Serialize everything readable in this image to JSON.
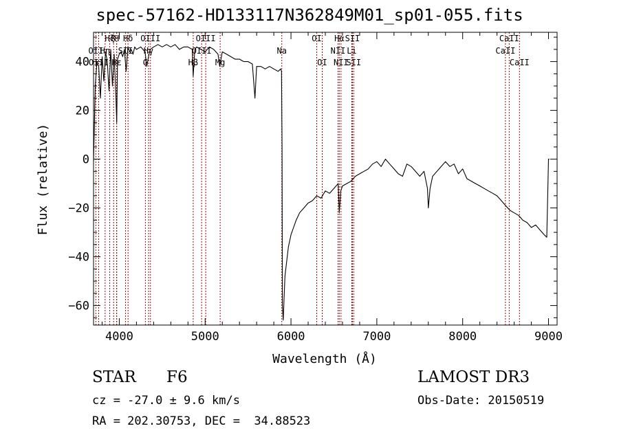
{
  "header": {
    "title": "spec-57162-HD133117N362849M01_sp01-055.fits"
  },
  "info": {
    "class_star": "STAR",
    "class_sub": "F6",
    "survey": "LAMOST DR3",
    "cz": "cz = -27.0 ± 9.6 km/s",
    "obs_date": "Obs-Date: 20150519",
    "radec": "RA = 202.30753, DEC =  34.88523"
  },
  "chart_data": {
    "type": "line",
    "title": "spec-57162-HD133117N362849M01_sp01-055.fits",
    "xlabel": "Wavelength (Å)",
    "ylabel": "Flux (relative)",
    "xlim": [
      3700,
      9100
    ],
    "ylim": [
      -68,
      52
    ],
    "x_ticks": [
      4000,
      5000,
      6000,
      7000,
      8000,
      9000
    ],
    "y_ticks": [
      -60,
      -40,
      -20,
      0,
      20,
      40
    ],
    "grid": false,
    "line_color": "#000000",
    "line_marker_color": "#aa0000",
    "series": [
      {
        "x": [
          3700,
          3720,
          3740,
          3760,
          3780,
          3800,
          3820,
          3840,
          3860,
          3880,
          3900,
          3920,
          3940,
          3960,
          3970,
          3980,
          4000,
          4020,
          4040,
          4060,
          4080,
          4100,
          4120,
          4140,
          4160,
          4180,
          4200,
          4250,
          4300,
          4320,
          4340,
          4360,
          4400,
          4450,
          4500,
          4550,
          4600,
          4650,
          4700,
          4750,
          4800,
          4850,
          4861,
          4880,
          4900,
          4950,
          5000,
          5050,
          5100,
          5150,
          5170,
          5200,
          5250,
          5300,
          5350,
          5400,
          5450,
          5500,
          5550,
          5580,
          5600,
          5650,
          5700,
          5750,
          5800,
          5850,
          5880,
          5890,
          5896,
          5900,
          5910,
          5930,
          5950,
          5970,
          6000,
          6030,
          6060,
          6100,
          6150,
          6200,
          6250,
          6300,
          6350,
          6400,
          6450,
          6500,
          6550,
          6563,
          6580,
          6600,
          6650,
          6700,
          6750,
          6800,
          6850,
          6900,
          6950,
          7000,
          7050,
          7100,
          7150,
          7200,
          7250,
          7300,
          7350,
          7400,
          7450,
          7500,
          7550,
          7590,
          7600,
          7620,
          7650,
          7700,
          7750,
          7800,
          7850,
          7900,
          7950,
          8000,
          8050,
          8100,
          8150,
          8200,
          8250,
          8300,
          8350,
          8400,
          8450,
          8500,
          8550,
          8600,
          8650,
          8700,
          8750,
          8800,
          8850,
          8900,
          8950,
          8980,
          9000,
          9010
        ],
        "y": [
          -1,
          30,
          40,
          38,
          25,
          42,
          32,
          44,
          40,
          28,
          45,
          30,
          43,
          26,
          15,
          41,
          43,
          44,
          42,
          45,
          36,
          46,
          44,
          45,
          43,
          46,
          45,
          46,
          44,
          38,
          42,
          45,
          46,
          47,
          46,
          47,
          46,
          47,
          45,
          46,
          46,
          45,
          34,
          45,
          46,
          45,
          44,
          46,
          45,
          43,
          38,
          44,
          43,
          42,
          41,
          41,
          40,
          40,
          39,
          25,
          38,
          38,
          37,
          38,
          37,
          36,
          37,
          36,
          5,
          -60,
          -66,
          -48,
          -42,
          -36,
          -31,
          -28,
          -25,
          -22,
          -20,
          -18,
          -17,
          -15,
          -16,
          -13,
          -14,
          -12,
          -10,
          -22,
          -13,
          -11,
          -10,
          -9,
          -7,
          -6,
          -5,
          -4,
          -2,
          -1,
          -3,
          0,
          -2,
          -4,
          -6,
          -7,
          -2,
          -3,
          -5,
          -7,
          -5,
          -12,
          -20,
          -12,
          -7,
          -5,
          -3,
          -1,
          -3,
          -2,
          -6,
          -4,
          -8,
          -9,
          -10,
          -11,
          -12,
          -13,
          -14,
          -15,
          -17,
          -19,
          -21,
          -22,
          -23,
          -25,
          -26,
          -28,
          -27,
          -29,
          -31,
          -32,
          0,
          0
        ]
      }
    ],
    "line_ids": [
      {
        "label": "Hζ",
        "x": 3889,
        "row": 0
      },
      {
        "label": "K",
        "x": 3934,
        "row": 0
      },
      {
        "label": "H",
        "x": 3969,
        "row": 0
      },
      {
        "label": "OII",
        "x": 3727,
        "row": 1
      },
      {
        "label": "Hη",
        "x": 3835,
        "row": 1
      },
      {
        "label": "SII",
        "x": 4072,
        "row": 1
      },
      {
        "label": "OIII",
        "x": 3760,
        "row": 2
      },
      {
        "label": "Hε",
        "x": 3970,
        "row": 2
      },
      {
        "label": "Hδ",
        "x": 4102,
        "row": 0
      },
      {
        "label": "OIII",
        "x": 4363,
        "row": 0
      },
      {
        "label": "G",
        "x": 4304,
        "row": 2
      },
      {
        "label": "Hγ",
        "x": 4341,
        "row": 1
      },
      {
        "label": "OIII",
        "x": 5007,
        "row": 0
      },
      {
        "label": "OIII",
        "x": 4959,
        "row": 1
      },
      {
        "label": "Hβ",
        "x": 4861,
        "row": 2
      },
      {
        "label": "Mg",
        "x": 5175,
        "row": 2
      },
      {
        "label": "Na",
        "x": 5893,
        "row": 1
      },
      {
        "label": "OI",
        "x": 6300,
        "row": 0
      },
      {
        "label": "OI",
        "x": 6364,
        "row": 2
      },
      {
        "label": "Hα",
        "x": 6563,
        "row": 0
      },
      {
        "label": "NII",
        "x": 6548,
        "row": 1
      },
      {
        "label": "NII",
        "x": 6583,
        "row": 2
      },
      {
        "label": "SII",
        "x": 6716,
        "row": 0
      },
      {
        "label": "Li",
        "x": 6708,
        "row": 1
      },
      {
        "label": "SII",
        "x": 6731,
        "row": 2
      },
      {
        "label": "CaII",
        "x": 8542,
        "row": 0
      },
      {
        "label": "CaII",
        "x": 8498,
        "row": 1
      },
      {
        "label": "CaII",
        "x": 8662,
        "row": 2
      }
    ]
  }
}
